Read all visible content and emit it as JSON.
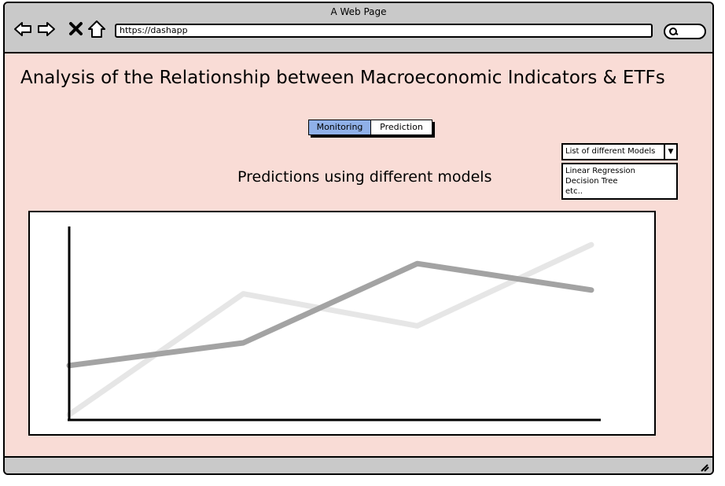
{
  "window": {
    "title": "A Web Page"
  },
  "browser": {
    "url": "https://dashapp",
    "icons": [
      "back-arrow-icon",
      "forward-arrow-icon",
      "close-icon",
      "home-icon",
      "search-icon",
      "resize-grip-icon"
    ]
  },
  "page": {
    "title": "Analysis of the Relationship between Macroeconomic Indicators & ETFs",
    "tabs": [
      {
        "label": "Monitoring",
        "active": true
      },
      {
        "label": "Prediction",
        "active": false
      }
    ],
    "dropdown": {
      "selected": "List of different Models",
      "options": [
        "Linear Regression",
        "Decision Tree",
        "etc.."
      ]
    },
    "chart_title": "Predictions using different models"
  },
  "colors": {
    "background": "#f9dcd6",
    "chrome": "#c9c9c9",
    "active_tab": "#8fb0e8",
    "series_dark": "#a3a3a3",
    "series_light": "#e6e6e6"
  },
  "chart_data": {
    "type": "line",
    "title": "",
    "xlabel": "",
    "ylabel": "",
    "x": [
      0,
      1,
      2,
      3
    ],
    "xlim": [
      0,
      3
    ],
    "ylim": [
      0,
      10
    ],
    "grid": false,
    "series": [
      {
        "values": [
          0.2,
          6.6,
          4.9,
          9.2
        ],
        "color": "#e6e6e6"
      },
      {
        "values": [
          2.8,
          4.0,
          8.2,
          6.8
        ],
        "color": "#a3a3a3"
      }
    ]
  }
}
